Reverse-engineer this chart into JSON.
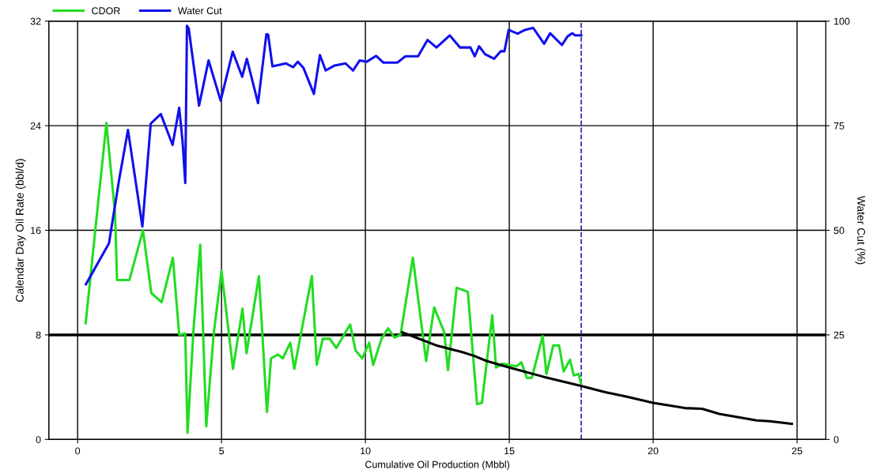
{
  "chart_data": {
    "type": "line",
    "xlabel": "Cumulative Oil Production (Mbbl)",
    "ylabel": "Calendar Day Oil Rate (bbl/d)",
    "y2label": "Water Cut (%)",
    "xlim": [
      -1,
      26
    ],
    "xticks": [
      0,
      5,
      10,
      15,
      20,
      25
    ],
    "ylim": [
      0,
      32
    ],
    "yticks": [
      0,
      8,
      16,
      24,
      32
    ],
    "y2lim": [
      0,
      100
    ],
    "y2ticks": [
      0,
      25,
      50,
      75,
      100
    ],
    "grid": true,
    "legend": "top left",
    "marker": "none",
    "line_style": "solid",
    "series": [
      {
        "name": "CDOR",
        "color": "#22dd22",
        "x": [
          0.28,
          1.0,
          1.3,
          1.37,
          1.8,
          2.27,
          2.56,
          2.92,
          3.31,
          3.53,
          3.74,
          3.82,
          4.03,
          4.26,
          4.47,
          4.73,
          5.0,
          5.4,
          5.73,
          5.87,
          6.3,
          6.58,
          6.72,
          6.96,
          7.13,
          7.39,
          7.53,
          8.14,
          8.31,
          8.52,
          8.76,
          8.99,
          9.47,
          9.66,
          9.89,
          10.13,
          10.27,
          10.56,
          10.79,
          11.01,
          11.22,
          11.65,
          12.11,
          12.39,
          12.74,
          12.87,
          13.17,
          13.56,
          13.88,
          14.05,
          14.41,
          14.54,
          14.76,
          15.25,
          15.42,
          15.61,
          15.78,
          16.16,
          16.29,
          16.53,
          16.73,
          16.89,
          17.11,
          17.24,
          17.41,
          17.49
        ],
        "values": [
          8.9,
          24.2,
          17.3,
          12.2,
          12.2,
          16.0,
          11.2,
          10.5,
          13.9,
          8.0,
          8.1,
          0.5,
          8.5,
          14.9,
          1.0,
          8.1,
          12.9,
          5.4,
          10.0,
          6.6,
          12.5,
          2.1,
          6.2,
          6.5,
          6.2,
          7.4,
          5.4,
          12.5,
          5.7,
          7.7,
          7.7,
          7.0,
          8.8,
          6.8,
          6.2,
          7.4,
          5.7,
          7.7,
          8.5,
          7.8,
          8.0,
          13.9,
          6.0,
          10.1,
          8.2,
          5.3,
          11.6,
          11.3,
          2.7,
          2.8,
          9.5,
          5.5,
          5.8,
          5.6,
          5.9,
          4.7,
          4.7,
          7.9,
          5.0,
          7.2,
          7.2,
          5.2,
          6.1,
          4.9,
          5.0,
          4.3
        ]
      },
      {
        "name": "Water Cut",
        "color": "#1010ee",
        "axis": "y2",
        "x": [
          0.29,
          1.09,
          1.44,
          1.75,
          2.25,
          2.54,
          2.89,
          3.3,
          3.53,
          3.65,
          3.74,
          3.8,
          3.86,
          4.22,
          4.55,
          4.97,
          5.39,
          5.72,
          5.88,
          6.27,
          6.56,
          6.62,
          6.77,
          7.24,
          7.49,
          7.65,
          7.85,
          8.21,
          8.42,
          8.62,
          8.93,
          9.31,
          9.57,
          9.8,
          10.05,
          10.37,
          10.62,
          11.11,
          11.39,
          11.83,
          12.16,
          12.47,
          12.93,
          13.29,
          13.65,
          13.8,
          13.95,
          14.16,
          14.47,
          14.7,
          14.83,
          14.98,
          15.29,
          15.54,
          15.83,
          16.21,
          16.42,
          16.83,
          17.03,
          17.19,
          17.29,
          17.5
        ],
        "values": [
          37.1,
          46.9,
          62,
          74.0,
          50.9,
          75.5,
          77.8,
          70.4,
          79.3,
          71,
          61.3,
          98.9,
          98.3,
          79.8,
          90.6,
          81.0,
          92.7,
          86.7,
          91.0,
          80.4,
          96.9,
          96.8,
          89.2,
          89.9,
          89.0,
          90.3,
          88.8,
          82.6,
          91.9,
          88.2,
          89.4,
          89.9,
          88.2,
          90.6,
          90.3,
          91.7,
          90.1,
          90.1,
          91.6,
          91.6,
          95.5,
          93.7,
          96.6,
          93.7,
          93.7,
          91.6,
          94,
          92.1,
          91.0,
          92.8,
          92.8,
          97.9,
          97.0,
          97.9,
          98.4,
          94.6,
          97.1,
          94.3,
          96.4,
          97.1,
          96.6,
          96.6
        ]
      },
      {
        "color": "#000000",
        "x": [
          11.28,
          11.75,
          12.46,
          13.34,
          13.77,
          14.21,
          15.0,
          16.18,
          17.49,
          18.37,
          19.03,
          20.0,
          21.1,
          21.7,
          22.3,
          23.6,
          24.05,
          24.82
        ],
        "values": [
          8.2,
          7.8,
          7.2,
          6.7,
          6.4,
          6.0,
          5.5,
          4.8,
          4.1,
          3.6,
          3.3,
          2.8,
          2.4,
          2.35,
          1.95,
          1.45,
          1.4,
          1.2
        ]
      }
    ],
    "ref_lines": [
      {
        "axis": "y",
        "value": 8,
        "color": "#000000",
        "line_style": "solid"
      },
      {
        "axis": "x",
        "value": 17.5,
        "color": "#2222aa",
        "line_style": "dashed"
      }
    ]
  }
}
